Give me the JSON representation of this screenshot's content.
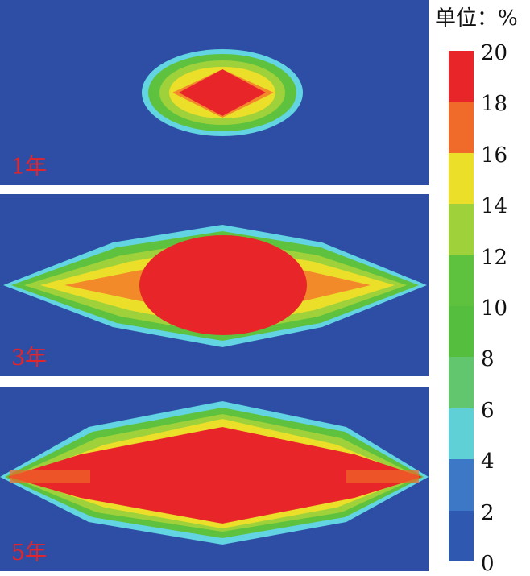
{
  "unit_label": "单位：%",
  "panels": [
    {
      "label": "1年"
    },
    {
      "label": "3年"
    },
    {
      "label": "5年"
    }
  ],
  "colorbar": {
    "ticks": [
      "20",
      "18",
      "16",
      "14",
      "12",
      "10",
      "8",
      "6",
      "4",
      "2",
      "0"
    ],
    "colors": [
      "#e8262a",
      "#f06a2a",
      "#ecdf2a",
      "#9fd23a",
      "#5ec23e",
      "#55be3e",
      "#62c66e",
      "#5fd0d6",
      "#3d78c6",
      "#2f58b0"
    ]
  }
}
